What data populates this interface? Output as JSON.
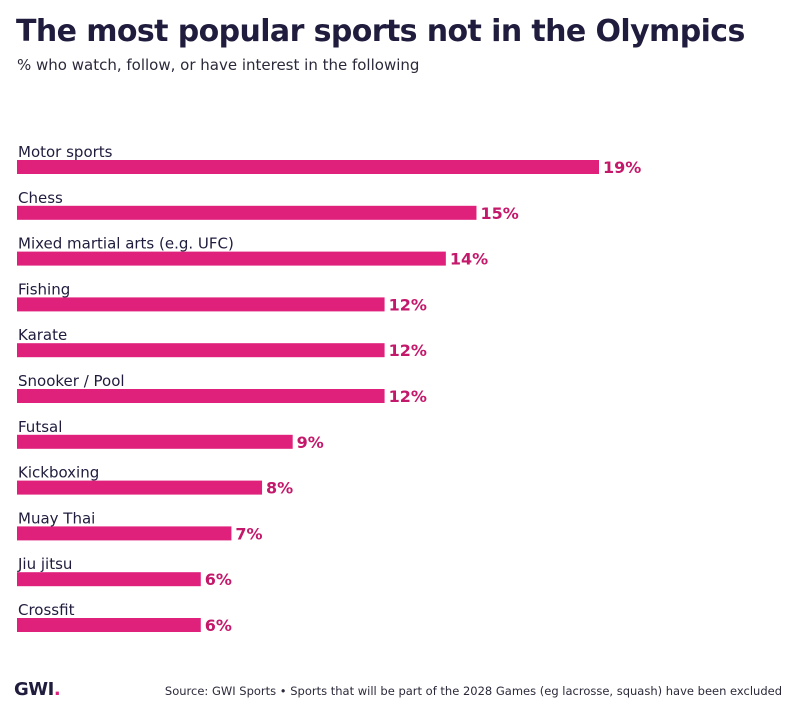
{
  "chart_data": {
    "type": "bar",
    "orientation": "horizontal",
    "title": "The most popular sports not in the Olympics",
    "subtitle": "% who watch, follow, or have interest in the following",
    "categories": [
      "Motor sports",
      "Chess",
      "Mixed martial arts (e.g. UFC)",
      "Fishing",
      "Karate",
      "Snooker / Pool",
      "Futsal",
      "Kickboxing",
      "Muay Thai",
      "Jiu jitsu",
      "Crossfit"
    ],
    "values": [
      19,
      15,
      14,
      12,
      12,
      12,
      9,
      8,
      7,
      6,
      6
    ],
    "value_labels": [
      "19%",
      "15%",
      "14%",
      "12%",
      "12%",
      "12%",
      "9%",
      "8%",
      "7%",
      "6%",
      "6%"
    ],
    "bar_color": "#e0217c",
    "value_label_color": "#c4186b",
    "xlim": [
      0,
      19
    ],
    "grid": false,
    "legend": "none"
  },
  "footer": {
    "logo_text": "GWI",
    "logo_dot": ".",
    "source": "Source: GWI Sports • Sports that will be part of the 2028 Games (eg lacrosse, squash) have been excluded"
  }
}
